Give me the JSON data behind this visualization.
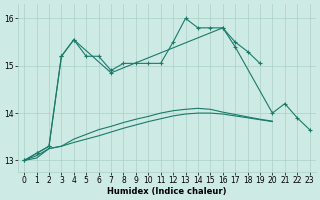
{
  "xlabel": "Humidex (Indice chaleur)",
  "x_values": [
    0,
    1,
    2,
    3,
    4,
    5,
    6,
    7,
    8,
    9,
    10,
    11,
    12,
    13,
    14,
    15,
    16,
    17,
    18,
    19,
    20,
    21,
    22,
    23
  ],
  "series1": [
    13.0,
    13.15,
    13.3,
    15.2,
    15.55,
    15.2,
    15.2,
    14.9,
    15.05,
    15.05,
    15.05,
    15.05,
    15.5,
    16.0,
    15.8,
    15.8,
    15.8,
    15.5,
    15.3,
    15.05,
    null,
    null,
    null,
    null
  ],
  "series2": [
    13.0,
    13.15,
    13.3,
    15.2,
    15.55,
    null,
    null,
    14.85,
    null,
    null,
    null,
    null,
    null,
    null,
    null,
    null,
    15.8,
    15.4,
    null,
    null,
    14.0,
    14.2,
    13.9,
    13.65
  ],
  "series3": [
    13.0,
    13.1,
    13.25,
    13.3,
    13.45,
    13.55,
    13.65,
    13.72,
    13.8,
    13.87,
    13.93,
    14.0,
    14.05,
    14.08,
    14.1,
    14.08,
    14.02,
    13.97,
    13.92,
    13.87,
    13.83,
    null,
    null,
    null
  ],
  "series4": [
    13.0,
    13.05,
    13.25,
    13.3,
    13.38,
    13.45,
    13.52,
    13.6,
    13.68,
    13.75,
    13.82,
    13.88,
    13.94,
    13.98,
    14.0,
    14.0,
    13.98,
    13.94,
    13.9,
    13.86,
    13.82,
    null,
    null,
    null
  ],
  "line_color": "#1a7a6a",
  "bg_color": "#ceeae4",
  "grid_color": "#aacfc8",
  "ylim": [
    12.75,
    16.3
  ],
  "yticks": [
    13,
    14,
    15,
    16
  ],
  "xticks": [
    0,
    1,
    2,
    3,
    4,
    5,
    6,
    7,
    8,
    9,
    10,
    11,
    12,
    13,
    14,
    15,
    16,
    17,
    18,
    19,
    20,
    21,
    22,
    23
  ]
}
